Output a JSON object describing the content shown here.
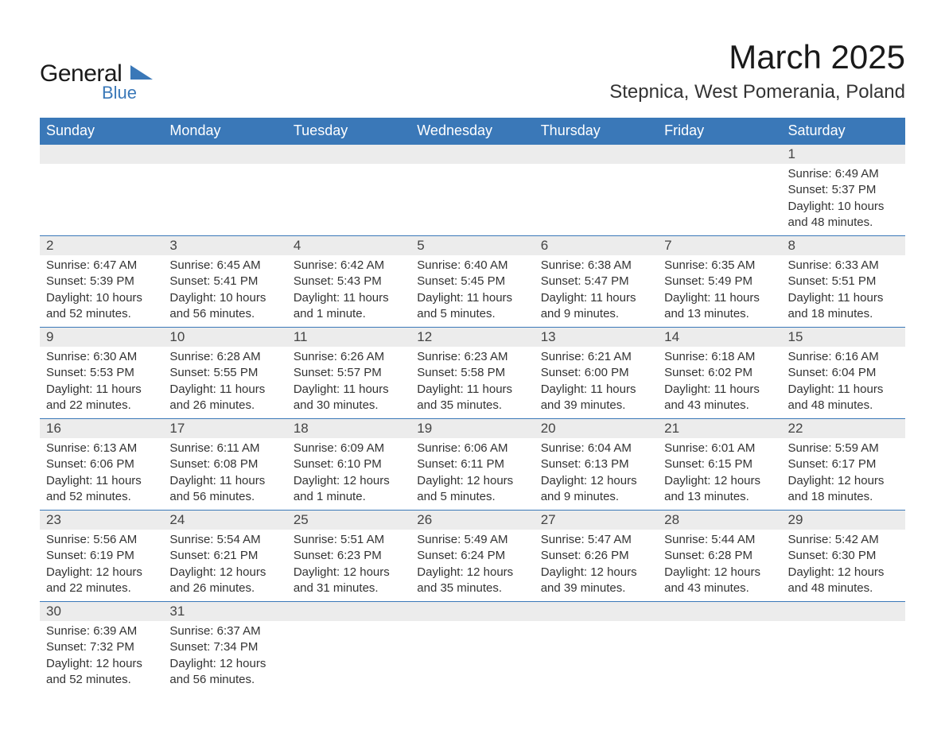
{
  "brand": {
    "top": "General",
    "bottom": "Blue"
  },
  "title": {
    "month": "March 2025",
    "location": "Stepnica, West Pomerania, Poland"
  },
  "style": {
    "header_bg": "#3a78b8",
    "header_fg": "#ffffff",
    "daynum_bg": "#ececec",
    "border_color": "#3a78b8",
    "text_color": "#333333",
    "title_fontsize": 42,
    "location_fontsize": 24,
    "header_fontsize": 18,
    "daynum_fontsize": 17,
    "detail_fontsize": 15
  },
  "columns": [
    "Sunday",
    "Monday",
    "Tuesday",
    "Wednesday",
    "Thursday",
    "Friday",
    "Saturday"
  ],
  "weeks": [
    [
      null,
      null,
      null,
      null,
      null,
      null,
      {
        "n": "1",
        "sr": "Sunrise: 6:49 AM",
        "ss": "Sunset: 5:37 PM",
        "dl": "Daylight: 10 hours and 48 minutes."
      }
    ],
    [
      {
        "n": "2",
        "sr": "Sunrise: 6:47 AM",
        "ss": "Sunset: 5:39 PM",
        "dl": "Daylight: 10 hours and 52 minutes."
      },
      {
        "n": "3",
        "sr": "Sunrise: 6:45 AM",
        "ss": "Sunset: 5:41 PM",
        "dl": "Daylight: 10 hours and 56 minutes."
      },
      {
        "n": "4",
        "sr": "Sunrise: 6:42 AM",
        "ss": "Sunset: 5:43 PM",
        "dl": "Daylight: 11 hours and 1 minute."
      },
      {
        "n": "5",
        "sr": "Sunrise: 6:40 AM",
        "ss": "Sunset: 5:45 PM",
        "dl": "Daylight: 11 hours and 5 minutes."
      },
      {
        "n": "6",
        "sr": "Sunrise: 6:38 AM",
        "ss": "Sunset: 5:47 PM",
        "dl": "Daylight: 11 hours and 9 minutes."
      },
      {
        "n": "7",
        "sr": "Sunrise: 6:35 AM",
        "ss": "Sunset: 5:49 PM",
        "dl": "Daylight: 11 hours and 13 minutes."
      },
      {
        "n": "8",
        "sr": "Sunrise: 6:33 AM",
        "ss": "Sunset: 5:51 PM",
        "dl": "Daylight: 11 hours and 18 minutes."
      }
    ],
    [
      {
        "n": "9",
        "sr": "Sunrise: 6:30 AM",
        "ss": "Sunset: 5:53 PM",
        "dl": "Daylight: 11 hours and 22 minutes."
      },
      {
        "n": "10",
        "sr": "Sunrise: 6:28 AM",
        "ss": "Sunset: 5:55 PM",
        "dl": "Daylight: 11 hours and 26 minutes."
      },
      {
        "n": "11",
        "sr": "Sunrise: 6:26 AM",
        "ss": "Sunset: 5:57 PM",
        "dl": "Daylight: 11 hours and 30 minutes."
      },
      {
        "n": "12",
        "sr": "Sunrise: 6:23 AM",
        "ss": "Sunset: 5:58 PM",
        "dl": "Daylight: 11 hours and 35 minutes."
      },
      {
        "n": "13",
        "sr": "Sunrise: 6:21 AM",
        "ss": "Sunset: 6:00 PM",
        "dl": "Daylight: 11 hours and 39 minutes."
      },
      {
        "n": "14",
        "sr": "Sunrise: 6:18 AM",
        "ss": "Sunset: 6:02 PM",
        "dl": "Daylight: 11 hours and 43 minutes."
      },
      {
        "n": "15",
        "sr": "Sunrise: 6:16 AM",
        "ss": "Sunset: 6:04 PM",
        "dl": "Daylight: 11 hours and 48 minutes."
      }
    ],
    [
      {
        "n": "16",
        "sr": "Sunrise: 6:13 AM",
        "ss": "Sunset: 6:06 PM",
        "dl": "Daylight: 11 hours and 52 minutes."
      },
      {
        "n": "17",
        "sr": "Sunrise: 6:11 AM",
        "ss": "Sunset: 6:08 PM",
        "dl": "Daylight: 11 hours and 56 minutes."
      },
      {
        "n": "18",
        "sr": "Sunrise: 6:09 AM",
        "ss": "Sunset: 6:10 PM",
        "dl": "Daylight: 12 hours and 1 minute."
      },
      {
        "n": "19",
        "sr": "Sunrise: 6:06 AM",
        "ss": "Sunset: 6:11 PM",
        "dl": "Daylight: 12 hours and 5 minutes."
      },
      {
        "n": "20",
        "sr": "Sunrise: 6:04 AM",
        "ss": "Sunset: 6:13 PM",
        "dl": "Daylight: 12 hours and 9 minutes."
      },
      {
        "n": "21",
        "sr": "Sunrise: 6:01 AM",
        "ss": "Sunset: 6:15 PM",
        "dl": "Daylight: 12 hours and 13 minutes."
      },
      {
        "n": "22",
        "sr": "Sunrise: 5:59 AM",
        "ss": "Sunset: 6:17 PM",
        "dl": "Daylight: 12 hours and 18 minutes."
      }
    ],
    [
      {
        "n": "23",
        "sr": "Sunrise: 5:56 AM",
        "ss": "Sunset: 6:19 PM",
        "dl": "Daylight: 12 hours and 22 minutes."
      },
      {
        "n": "24",
        "sr": "Sunrise: 5:54 AM",
        "ss": "Sunset: 6:21 PM",
        "dl": "Daylight: 12 hours and 26 minutes."
      },
      {
        "n": "25",
        "sr": "Sunrise: 5:51 AM",
        "ss": "Sunset: 6:23 PM",
        "dl": "Daylight: 12 hours and 31 minutes."
      },
      {
        "n": "26",
        "sr": "Sunrise: 5:49 AM",
        "ss": "Sunset: 6:24 PM",
        "dl": "Daylight: 12 hours and 35 minutes."
      },
      {
        "n": "27",
        "sr": "Sunrise: 5:47 AM",
        "ss": "Sunset: 6:26 PM",
        "dl": "Daylight: 12 hours and 39 minutes."
      },
      {
        "n": "28",
        "sr": "Sunrise: 5:44 AM",
        "ss": "Sunset: 6:28 PM",
        "dl": "Daylight: 12 hours and 43 minutes."
      },
      {
        "n": "29",
        "sr": "Sunrise: 5:42 AM",
        "ss": "Sunset: 6:30 PM",
        "dl": "Daylight: 12 hours and 48 minutes."
      }
    ],
    [
      {
        "n": "30",
        "sr": "Sunrise: 6:39 AM",
        "ss": "Sunset: 7:32 PM",
        "dl": "Daylight: 12 hours and 52 minutes."
      },
      {
        "n": "31",
        "sr": "Sunrise: 6:37 AM",
        "ss": "Sunset: 7:34 PM",
        "dl": "Daylight: 12 hours and 56 minutes."
      },
      null,
      null,
      null,
      null,
      null
    ]
  ]
}
